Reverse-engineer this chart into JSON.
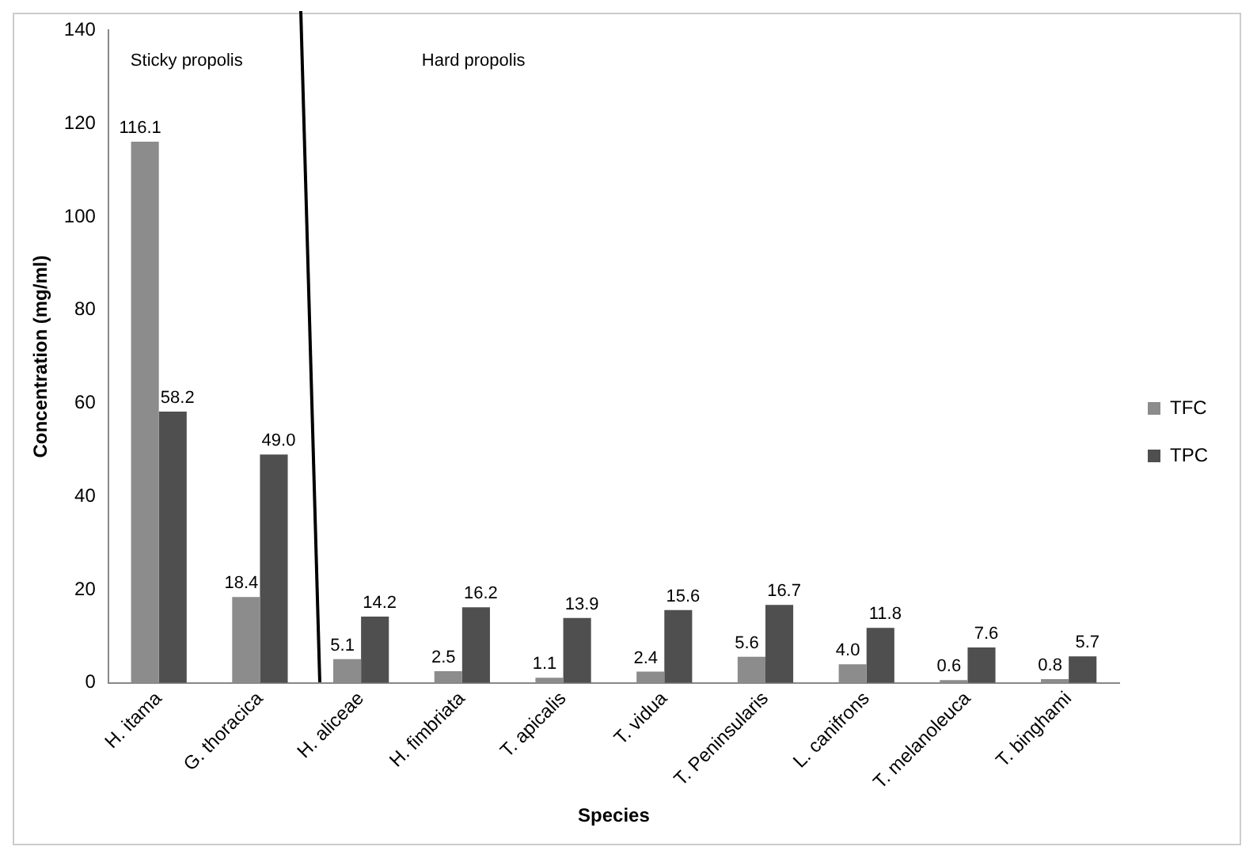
{
  "chart_data": {
    "type": "bar",
    "xlabel": "Species",
    "ylabel": "Concentration (mg/ml)",
    "categories": [
      "H. itama",
      "G. thoracica",
      "H. aliceae",
      "H. fimbriata",
      "T. apicalis",
      "T. vidua",
      "T. Peninsularis",
      "L. canifrons",
      "T. melanoleuca",
      "T. binghami"
    ],
    "series": [
      {
        "name": "TFC",
        "color": "#8c8c8c",
        "values": [
          116.1,
          18.4,
          5.1,
          2.5,
          1.1,
          2.4,
          5.6,
          4.0,
          0.6,
          0.8
        ],
        "value_labels": [
          "116.1",
          "18.4",
          "5.1",
          "2.5",
          "1.1",
          "2.4",
          "5.6",
          "4.0",
          "0.6",
          "0.8"
        ]
      },
      {
        "name": "TPC",
        "color": "#4f4f4f",
        "values": [
          58.2,
          49.0,
          14.2,
          16.2,
          13.9,
          15.6,
          16.7,
          11.8,
          7.6,
          5.7
        ],
        "value_labels": [
          "58.2",
          "49.0",
          "14.2",
          "16.2",
          "13.9",
          "15.6",
          "16.7",
          "11.8",
          "7.6",
          "5.7"
        ]
      }
    ],
    "ylim": [
      0,
      140
    ],
    "yticks": [
      0,
      20,
      40,
      60,
      80,
      100,
      120,
      140
    ],
    "grid": false,
    "legend": "right",
    "annotations": [
      "Sticky propolis",
      "Hard propolis"
    ]
  }
}
